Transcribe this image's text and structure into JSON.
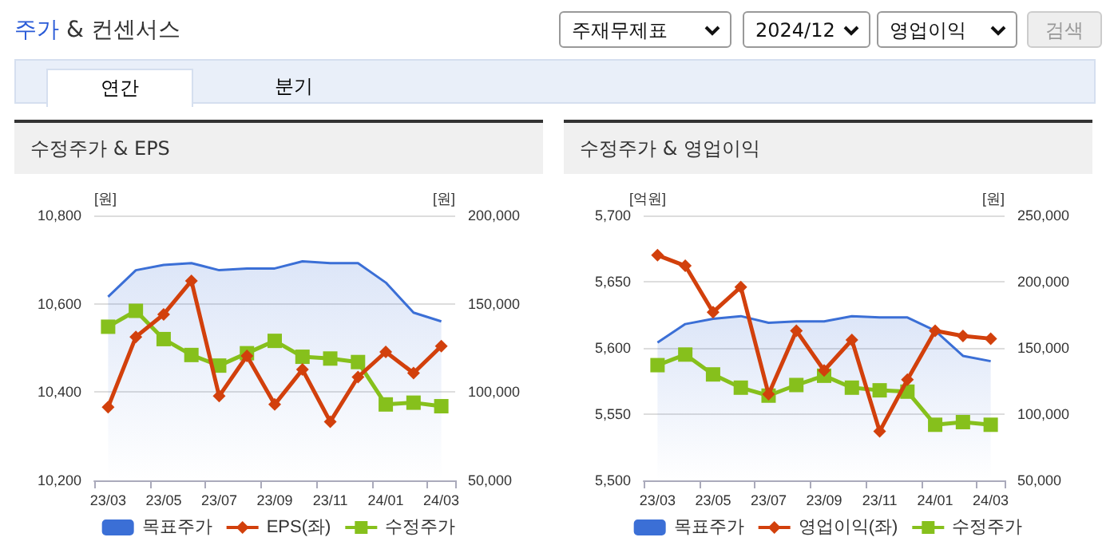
{
  "chart_data": [
    {
      "type": "other",
      "title": "주가 & 컨센서스",
      "annotations": [
        "주재무제표",
        "2024/12",
        "영업이익",
        "검색",
        "연간",
        "분기"
      ]
    },
    {
      "type": "line",
      "title": "수정주가 & EPS",
      "ylabel": "[원]",
      "y2label": "[원]",
      "categories": [
        "23/03",
        null,
        "23/05",
        null,
        "23/07",
        null,
        "23/09",
        null,
        "23/11",
        null,
        "24/01",
        null,
        "24/03"
      ],
      "series": [
        {
          "name": "목표주가",
          "type": "area",
          "axis": "y2",
          "color": "#3b6fd6",
          "marker": "none",
          "values": [
            154000,
            169000,
            172000,
            173000,
            169000,
            170000,
            170000,
            174000,
            173000,
            173000,
            162000,
            145000,
            140000
          ]
        },
        {
          "name": "EPS(좌)",
          "type": "line",
          "color": "#d2400c",
          "marker": "diamond",
          "values": [
            10366,
            10525,
            10576,
            10652,
            10391,
            10482,
            10372,
            10451,
            10333,
            10434,
            10491,
            10443,
            10504
          ]
        },
        {
          "name": "수정주가",
          "type": "line",
          "axis": "y2",
          "color": "#86c01c",
          "marker": "square",
          "values": [
            137000,
            146000,
            130000,
            121000,
            115000,
            122000,
            129000,
            120000,
            119000,
            117000,
            93000,
            94000,
            92000
          ]
        }
      ],
      "ylim": [
        10200,
        10800
      ],
      "yticks": [
        {
          "value": 10200,
          "label": "10,200"
        },
        {
          "value": 10400,
          "label": "10,400"
        },
        {
          "value": 10600,
          "label": "10,600"
        },
        {
          "value": 10800,
          "label": "10,800"
        }
      ],
      "y2lim": [
        50000,
        200000
      ],
      "y2ticks": [
        {
          "value": 50000,
          "label": "50,000"
        },
        {
          "value": 100000,
          "label": "100,000"
        },
        {
          "value": 150000,
          "label": "150,000"
        },
        {
          "value": 200000,
          "label": "200,000"
        }
      ],
      "grid": "y",
      "legend": "bottom"
    },
    {
      "type": "line",
      "title": "수정주가 & 영업이익",
      "ylabel": "[억원]",
      "y2label": "[원]",
      "categories": [
        "23/03",
        null,
        "23/05",
        null,
        "23/07",
        null,
        "23/09",
        null,
        "23/11",
        null,
        "24/01",
        null,
        "24/03"
      ],
      "series": [
        {
          "name": "목표주가",
          "type": "area",
          "axis": "y2",
          "color": "#3b6fd6",
          "marker": "none",
          "values": [
            154000,
            168000,
            172000,
            174000,
            169000,
            170000,
            170000,
            174000,
            173000,
            173000,
            163000,
            144000,
            140000
          ]
        },
        {
          "name": "영업이익(좌)",
          "type": "line",
          "color": "#d2400c",
          "marker": "diamond",
          "values": [
            5670,
            5662,
            5627,
            5646,
            5565,
            5613,
            5583,
            5606,
            5537,
            5576,
            5613,
            5609,
            5607
          ]
        },
        {
          "name": "수정주가",
          "type": "line",
          "axis": "y2",
          "color": "#86c01c",
          "marker": "square",
          "values": [
            137000,
            145000,
            130000,
            120000,
            114000,
            122000,
            129000,
            120000,
            118000,
            117000,
            92000,
            94000,
            92000
          ]
        }
      ],
      "ylim": [
        5500,
        5700
      ],
      "yticks": [
        {
          "value": 5500,
          "label": "5,500"
        },
        {
          "value": 5550,
          "label": "5,550"
        },
        {
          "value": 5600,
          "label": "5,600"
        },
        {
          "value": 5650,
          "label": "5,650"
        },
        {
          "value": 5700,
          "label": "5,700"
        }
      ],
      "y2lim": [
        50000,
        250000
      ],
      "y2ticks": [
        {
          "value": 50000,
          "label": "50,000"
        },
        {
          "value": 100000,
          "label": "100,000"
        },
        {
          "value": 150000,
          "label": "150,000"
        },
        {
          "value": 200000,
          "label": "200,000"
        },
        {
          "value": 250000,
          "label": "250,000"
        }
      ],
      "grid": "y",
      "legend": "bottom"
    }
  ]
}
